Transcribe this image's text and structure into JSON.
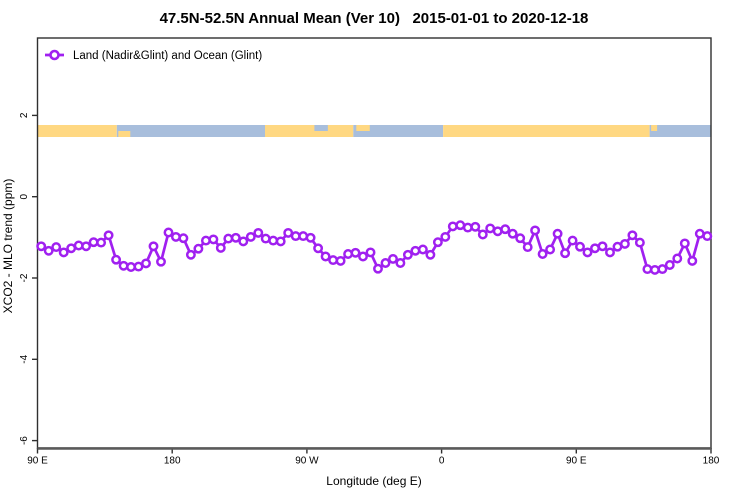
{
  "page": {
    "background": "#ffffff"
  },
  "legend": {
    "label": "Land (Nadir&Glint) and Ocean (Glint)"
  },
  "colors": {
    "line": "#A020F0",
    "marker_fill": "#ffffff",
    "land_band": "#FFD882",
    "ocean_band": "#A8BEDC",
    "box_stroke": "#2f2f2f",
    "bottom_axis_stroke": "#5a5a5a",
    "text": "#000000"
  },
  "chart_data": {
    "type": "line",
    "title": "47.5N-52.5N Annual Mean (Ver 10)   2015-01-01 to 2020-12-18",
    "xlabel": "Longitude (deg E)",
    "ylabel": "XCO2 - MLO trend (ppm)",
    "xlim": [
      90,
      540
    ],
    "ylim": [
      -6.2,
      3.9
    ],
    "x_wraps_longitude": true,
    "grid": false,
    "legend_position": "top-left-inside",
    "xticks": [
      {
        "pos": 90,
        "label": "90 E"
      },
      {
        "pos": 180,
        "label": "180"
      },
      {
        "pos": 270,
        "label": "90 W"
      },
      {
        "pos": 360,
        "label": "0"
      },
      {
        "pos": 450,
        "label": "90 E"
      },
      {
        "pos": 540,
        "label": "180"
      }
    ],
    "yticks": [
      2,
      0,
      -2,
      -4,
      -6
    ],
    "x_start_deg": 92.5,
    "x_step_deg": 5,
    "series": [
      {
        "name": "Land (Nadir&Glint) and Ocean (Glint)",
        "color": "#A020F0",
        "marker": "open-circle",
        "values": [
          -1.22,
          -1.33,
          -1.24,
          -1.37,
          -1.27,
          -1.2,
          -1.22,
          -1.12,
          -1.13,
          -0.95,
          -1.55,
          -1.7,
          -1.73,
          -1.72,
          -1.64,
          -1.22,
          -1.6,
          -0.88,
          -0.99,
          -1.02,
          -1.43,
          -1.28,
          -1.08,
          -1.05,
          -1.26,
          -1.03,
          -1.01,
          -1.1,
          -0.99,
          -0.89,
          -1.03,
          -1.08,
          -1.1,
          -0.89,
          -0.97,
          -0.97,
          -1.01,
          -1.27,
          -1.47,
          -1.56,
          -1.58,
          -1.41,
          -1.38,
          -1.47,
          -1.37,
          -1.77,
          -1.63,
          -1.53,
          -1.63,
          -1.43,
          -1.33,
          -1.3,
          -1.43,
          -1.12,
          -0.99,
          -0.73,
          -0.7,
          -0.76,
          -0.74,
          -0.93,
          -0.78,
          -0.85,
          -0.8,
          -0.91,
          -1.02,
          -1.24,
          -0.83,
          -1.41,
          -1.3,
          -0.91,
          -1.39,
          -1.08,
          -1.23,
          -1.37,
          -1.27,
          -1.22,
          -1.37,
          -1.23,
          -1.16,
          -0.95,
          -1.13,
          -1.78,
          -1.8,
          -1.78,
          -1.68,
          -1.52,
          -1.15,
          -1.58,
          -0.91,
          -0.97
        ]
      }
    ],
    "surface_band": {
      "description": "land/ocean surface-type stripe drawn near +1.6 ppm",
      "value_center": 1.62,
      "land_color": "#FFD882",
      "ocean_color": "#A8BEDC",
      "segments": [
        {
          "from": 90,
          "to": 143,
          "type": "land"
        },
        {
          "from": 143,
          "to": 242,
          "type": "ocean"
        },
        {
          "from": 242,
          "to": 301,
          "type": "land"
        },
        {
          "from": 301,
          "to": 361,
          "type": "ocean"
        },
        {
          "from": 361,
          "to": 499,
          "type": "land"
        },
        {
          "from": 499,
          "to": 540,
          "type": "ocean"
        }
      ],
      "details": [
        {
          "from": 144,
          "to": 152,
          "type": "land",
          "half": "bottom"
        },
        {
          "from": 275,
          "to": 284,
          "type": "ocean",
          "half": "top"
        },
        {
          "from": 303,
          "to": 312,
          "type": "land",
          "half": "top"
        },
        {
          "from": 500,
          "to": 504,
          "type": "land",
          "half": "top"
        }
      ]
    }
  }
}
